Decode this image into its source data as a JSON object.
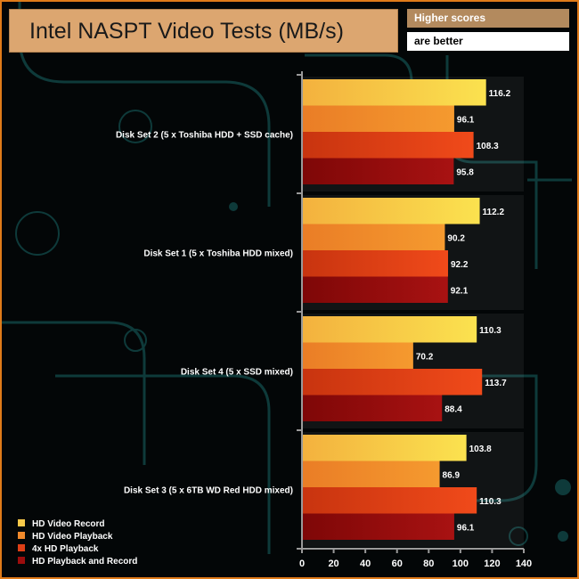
{
  "title": "Intel NASPT Video Tests (MB/s)",
  "note_top": "Higher scores",
  "note_bottom": "are better",
  "chart_data": {
    "type": "bar",
    "orientation": "horizontal",
    "title": "Intel NASPT Video Tests (MB/s)",
    "categories": [
      "Disk Set 2 (5 x Toshiba HDD + SSD cache)",
      "Disk Set 1 (5 x Toshiba HDD mixed)",
      "Disk Set 4 (5 x SSD mixed)",
      "Disk Set 3 (5 x 6TB WD Red HDD mixed)"
    ],
    "series": [
      {
        "name": "HD Video Record",
        "color": "#f7c94a",
        "values": [
          116.2,
          112.2,
          110.3,
          103.8
        ]
      },
      {
        "name": "HD Video Playback",
        "color": "#f0892b",
        "values": [
          96.1,
          90.2,
          70.2,
          86.9
        ]
      },
      {
        "name": "4x HD Playback",
        "color": "#de3f16",
        "values": [
          108.3,
          92.2,
          113.7,
          110.3
        ]
      },
      {
        "name": "HD Playback and Record",
        "color": "#9b0d0d",
        "values": [
          95.8,
          92.1,
          88.4,
          96.1
        ]
      }
    ],
    "xlim": [
      0,
      140
    ],
    "xticks": [
      0,
      20,
      40,
      60,
      80,
      100,
      120,
      140
    ],
    "legend_position": "bottom-left"
  }
}
